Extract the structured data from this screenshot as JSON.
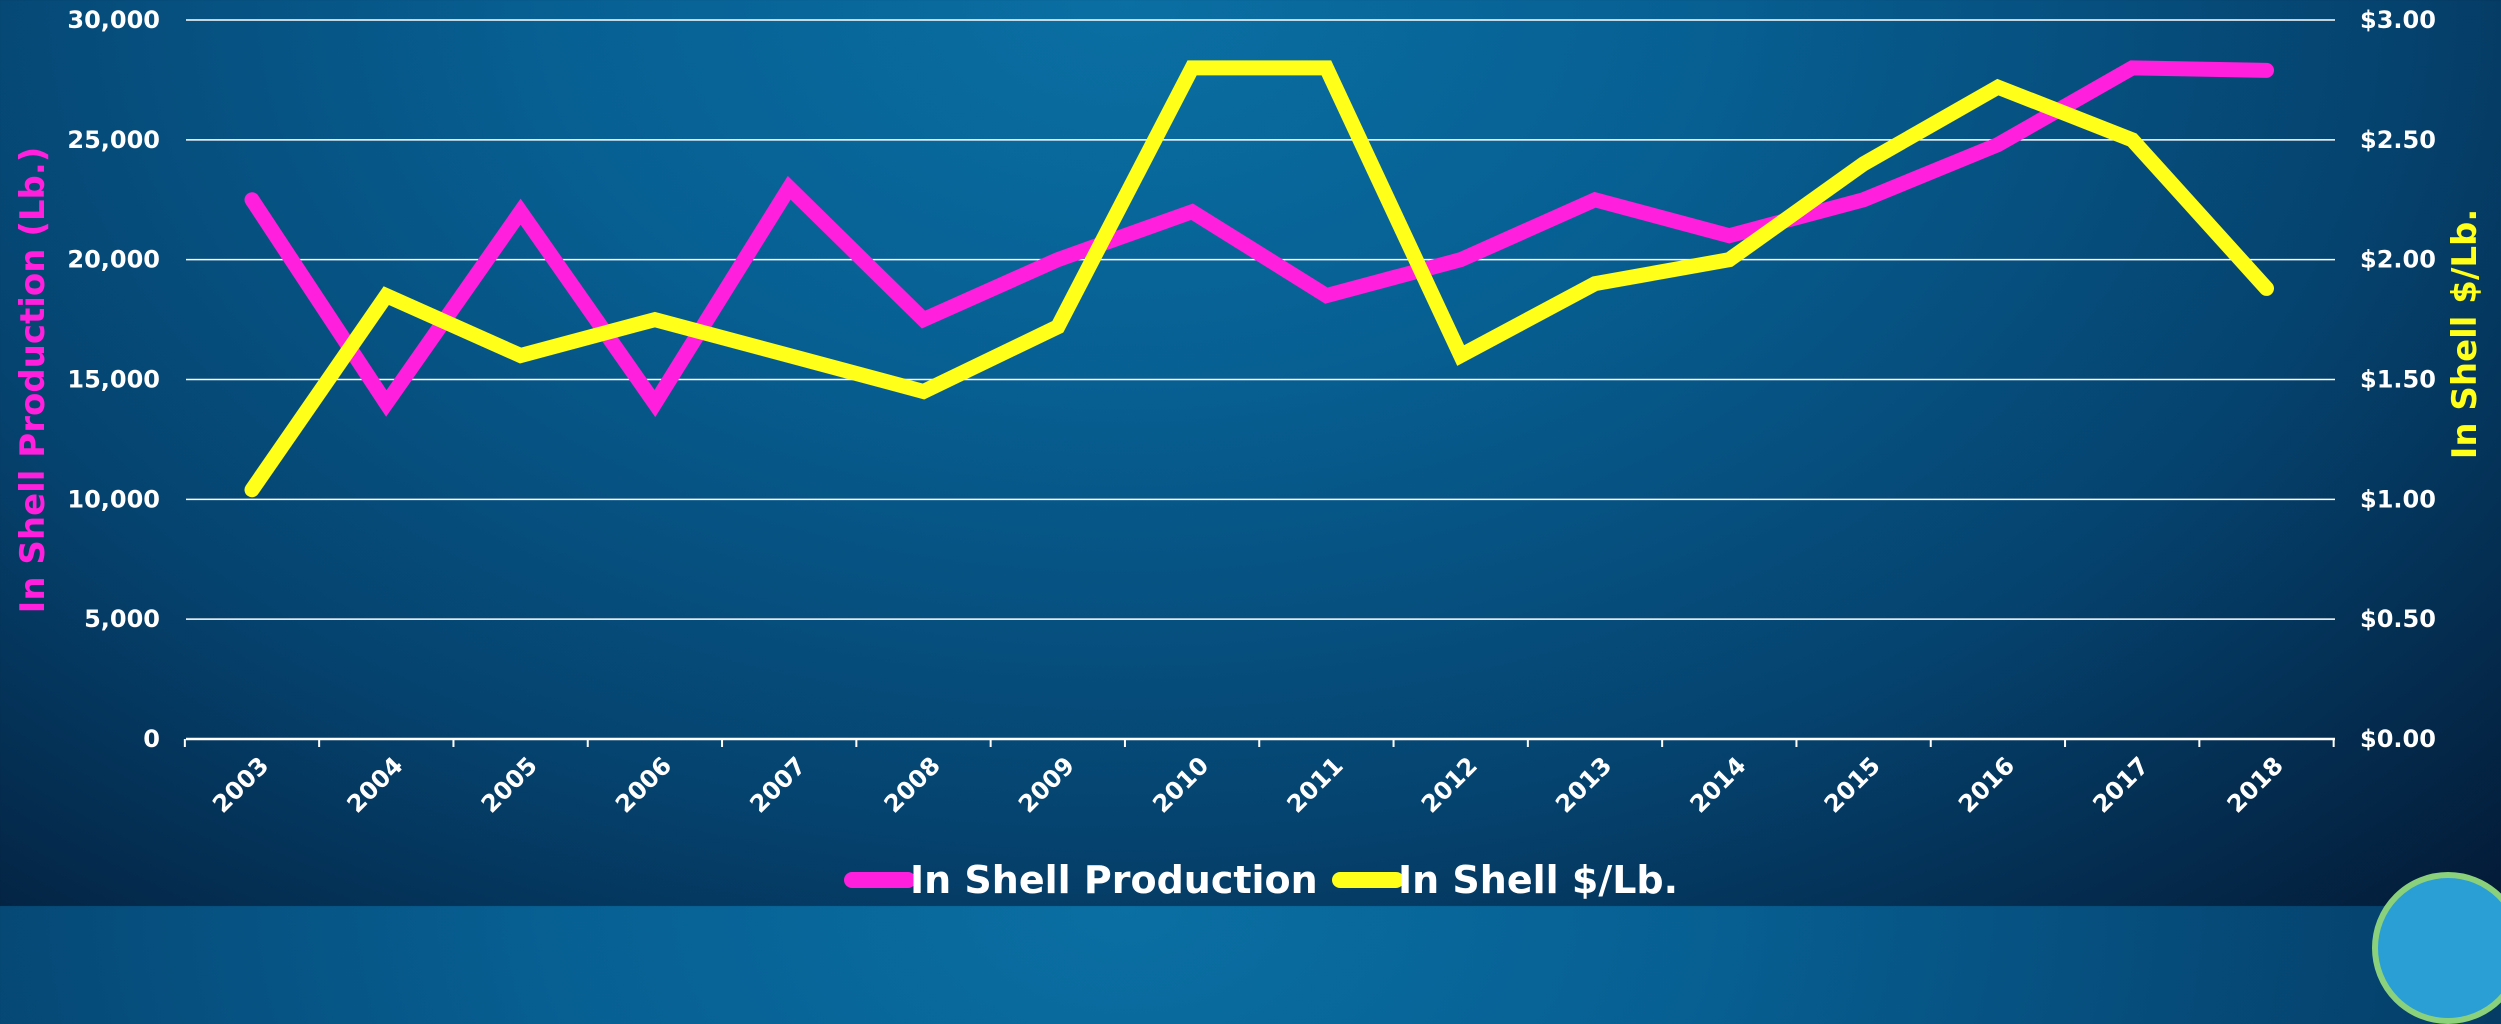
{
  "colors": {
    "production": "#ff1fdc",
    "price": "#ffff1a",
    "grid": "#ffffff",
    "text": "#ffffff"
  },
  "chart_data": {
    "type": "line",
    "categories": [
      "2003",
      "2004",
      "2005",
      "2006",
      "2007",
      "2008",
      "2009",
      "2010",
      "2011",
      "2012",
      "2013",
      "2014",
      "2015",
      "2016",
      "2017",
      "2018"
    ],
    "series": [
      {
        "name": "In Shell Production",
        "axis": "left",
        "values": [
          22500,
          14000,
          22000,
          14000,
          23000,
          17500,
          20000,
          22000,
          18500,
          20000,
          22500,
          21000,
          22500,
          24800,
          28000,
          27900
        ]
      },
      {
        "name": "In Shell $/Lb.",
        "axis": "right",
        "values": [
          1.04,
          1.85,
          1.6,
          1.75,
          1.6,
          1.45,
          1.72,
          2.8,
          2.8,
          1.6,
          1.9,
          2.0,
          2.4,
          2.72,
          2.5,
          1.88
        ]
      }
    ],
    "y_left": {
      "label": "In Shell Production (Lb.)",
      "ylim": [
        0,
        30000
      ],
      "ticks": [
        0,
        5000,
        10000,
        15000,
        20000,
        25000,
        30000
      ],
      "tick_labels": [
        "0",
        "5,000",
        "10,000",
        "15,000",
        "20,000",
        "25,000",
        "30,000"
      ]
    },
    "y_right": {
      "label": "In Shell $/Lb.",
      "ylim": [
        0,
        3
      ],
      "ticks": [
        0,
        0.5,
        1,
        1.5,
        2,
        2.5,
        3
      ],
      "tick_labels": [
        "$0.00",
        "$0.50",
        "$1.00",
        "$1.50",
        "$2.00",
        "$2.50",
        "$3.00"
      ]
    },
    "grid": true,
    "legend": {
      "position": "bottom",
      "entries": [
        "In Shell Production",
        "In Shell $/Lb."
      ]
    }
  }
}
